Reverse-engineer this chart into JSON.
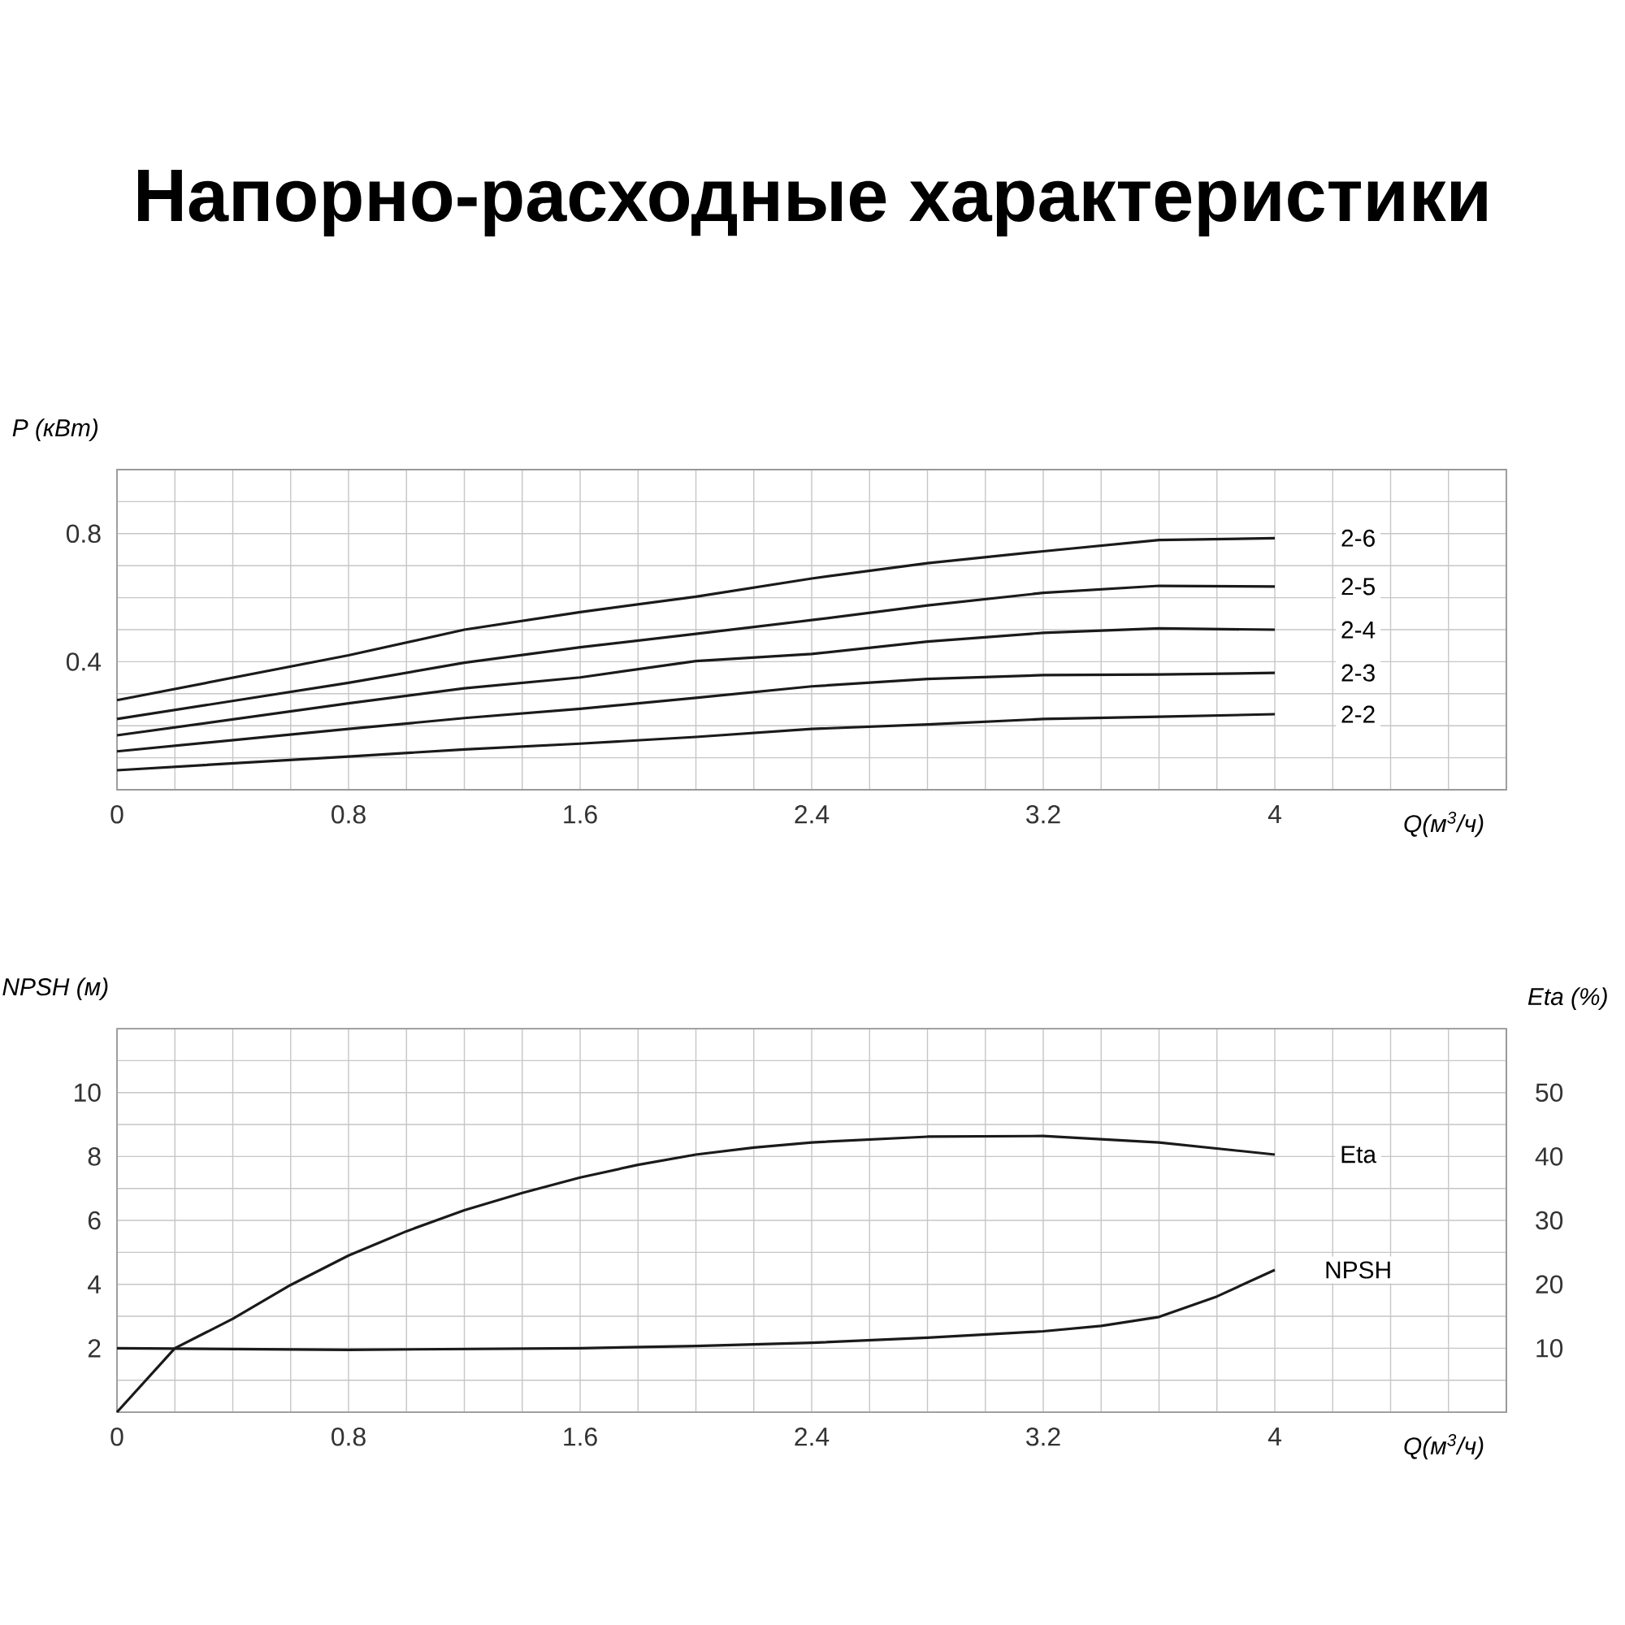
{
  "chart_data": [
    {
      "type": "line",
      "title": "Напорно-расходные характеристики",
      "xlabel": "Q(м$^{3}$/ч)",
      "ylabel": "P (кВт)",
      "grid": true,
      "xlim": [
        0,
        4.8
      ],
      "ylim": [
        0,
        1.0
      ],
      "xticks": [
        0,
        {
          "value": 0.2,
          "label": null
        },
        {
          "value": 0.4,
          "label": null
        },
        {
          "value": 0.6,
          "label": null
        },
        0.8,
        {
          "value": 1.0,
          "label": null
        },
        {
          "value": 1.2,
          "label": null
        },
        {
          "value": 1.4,
          "label": null
        },
        1.6,
        {
          "value": 1.8,
          "label": null
        },
        {
          "value": 2.0,
          "label": null
        },
        {
          "value": 2.2,
          "label": null
        },
        2.4,
        {
          "value": 2.6,
          "label": null
        },
        {
          "value": 2.8,
          "label": null
        },
        {
          "value": 3.0,
          "label": null
        },
        3.2,
        {
          "value": 3.4,
          "label": null
        },
        {
          "value": 3.6,
          "label": null
        },
        {
          "value": 3.8,
          "label": null
        },
        4,
        {
          "value": 4.2,
          "label": null
        },
        {
          "value": 4.4,
          "label": null
        },
        {
          "value": 4.6,
          "label": null
        },
        {
          "value": 4.8,
          "label": null
        }
      ],
      "yticks": [
        {
          "value": 0,
          "label": null
        },
        {
          "value": 0.1,
          "label": null
        },
        {
          "value": 0.2,
          "label": null
        },
        {
          "value": 0.3,
          "label": null
        },
        0.4,
        {
          "value": 0.5,
          "label": null
        },
        {
          "value": 0.6,
          "label": null
        },
        {
          "value": 0.7,
          "label": null
        },
        0.8,
        {
          "value": 0.9,
          "label": null
        },
        {
          "value": 1.0,
          "label": null
        }
      ],
      "x": [
        0,
        0.8,
        1.2,
        1.6,
        2.0,
        2.4,
        2.8,
        3.2,
        3.6,
        4.0
      ],
      "series": [
        {
          "name": "2-6",
          "color": "#1a1a1a",
          "values": [
            0.28,
            0.42,
            0.5,
            0.555,
            0.603,
            0.66,
            0.708,
            0.745,
            0.78,
            0.786
          ]
        },
        {
          "name": "2-5",
          "color": "#1a1a1a",
          "values": [
            0.221,
            0.334,
            0.397,
            0.445,
            0.487,
            0.53,
            0.576,
            0.615,
            0.637,
            0.635
          ]
        },
        {
          "name": "2-4",
          "color": "#1a1a1a",
          "values": [
            0.17,
            0.27,
            0.317,
            0.351,
            0.402,
            0.424,
            0.463,
            0.49,
            0.504,
            0.5
          ]
        },
        {
          "name": "2-3",
          "color": "#1a1a1a",
          "values": [
            0.12,
            0.19,
            0.224,
            0.253,
            0.287,
            0.323,
            0.346,
            0.358,
            0.36,
            0.365
          ]
        },
        {
          "name": "2-2",
          "color": "#1a1a1a",
          "values": [
            0.061,
            0.104,
            0.126,
            0.144,
            0.165,
            0.19,
            0.204,
            0.221,
            0.228,
            0.236
          ]
        }
      ]
    },
    {
      "type": "line",
      "xlabel": "Q(м$^{3}$/ч)",
      "ylabel": "NPSH (м)",
      "y2label": "Eta (%)",
      "grid": true,
      "xlim": [
        0,
        4.8
      ],
      "ylim": [
        0,
        12
      ],
      "y2lim": [
        0,
        60
      ],
      "xticks": [
        0,
        {
          "value": 0.2,
          "label": null
        },
        {
          "value": 0.4,
          "label": null
        },
        {
          "value": 0.6,
          "label": null
        },
        0.8,
        {
          "value": 1.0,
          "label": null
        },
        {
          "value": 1.2,
          "label": null
        },
        {
          "value": 1.4,
          "label": null
        },
        1.6,
        {
          "value": 1.8,
          "label": null
        },
        {
          "value": 2.0,
          "label": null
        },
        {
          "value": 2.2,
          "label": null
        },
        2.4,
        {
          "value": 2.6,
          "label": null
        },
        {
          "value": 2.8,
          "label": null
        },
        {
          "value": 3.0,
          "label": null
        },
        3.2,
        {
          "value": 3.4,
          "label": null
        },
        {
          "value": 3.6,
          "label": null
        },
        {
          "value": 3.8,
          "label": null
        },
        4,
        {
          "value": 4.2,
          "label": null
        },
        {
          "value": 4.4,
          "label": null
        },
        {
          "value": 4.6,
          "label": null
        },
        {
          "value": 4.8,
          "label": null
        }
      ],
      "yticks": [
        {
          "value": 0,
          "label": null
        },
        {
          "value": 1,
          "label": null
        },
        2,
        {
          "value": 3,
          "label": null
        },
        4,
        {
          "value": 5,
          "label": null
        },
        6,
        {
          "value": 7,
          "label": null
        },
        8,
        {
          "value": 9,
          "label": null
        },
        10,
        {
          "value": 11,
          "label": null
        },
        {
          "value": 12,
          "label": null
        }
      ],
      "y2ticks": [
        10,
        20,
        30,
        40,
        50
      ],
      "series": [
        {
          "name": "Eta",
          "color": "#1a1a1a",
          "axis": "y2",
          "x": [
            0,
            0.2,
            0.4,
            0.6,
            0.8,
            1.0,
            1.2,
            1.4,
            1.6,
            1.8,
            2.0,
            2.2,
            2.4,
            2.8,
            3.2,
            3.6,
            4.0
          ],
          "values": [
            0,
            10,
            14.6,
            19.9,
            24.5,
            28.3,
            31.6,
            34.3,
            36.7,
            38.7,
            40.3,
            41.4,
            42.2,
            43.1,
            43.2,
            42.2,
            40.3
          ]
        },
        {
          "name": "NPSH",
          "color": "#1a1a1a",
          "axis": "y",
          "x": [
            0,
            0.8,
            1.6,
            2.0,
            2.4,
            2.8,
            3.2,
            3.4,
            3.6,
            3.8,
            4.0
          ],
          "values": [
            2.0,
            1.95,
            2.0,
            2.07,
            2.17,
            2.33,
            2.53,
            2.7,
            2.98,
            3.62,
            4.45
          ]
        }
      ]
    }
  ]
}
